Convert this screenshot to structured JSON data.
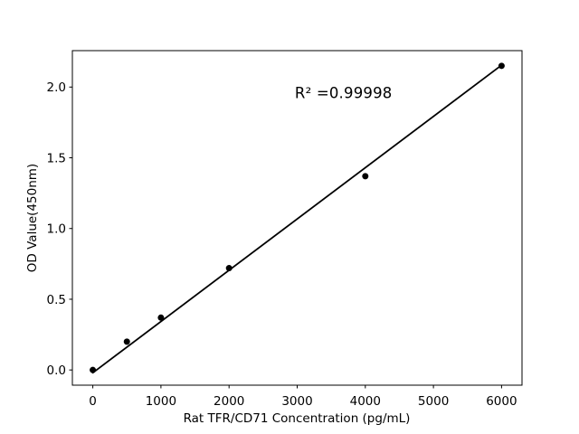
{
  "chart_data": {
    "type": "scatter",
    "xlabel": "Rat TFR/CD71 Concentration (pg/mL)",
    "ylabel": "OD Value(450nm)",
    "annotation": {
      "text": "R² =0.99998",
      "x": 3680,
      "y": 1.96
    },
    "x": [
      0,
      500,
      1000,
      2000,
      4000,
      6000
    ],
    "y": [
      0.0,
      0.2,
      0.37,
      0.72,
      1.37,
      2.15
    ],
    "fit_line": {
      "x": [
        0,
        6000
      ],
      "y": [
        -0.02,
        2.155
      ]
    },
    "x_tick_values": [
      0,
      1000,
      2000,
      3000,
      4000,
      5000,
      6000
    ],
    "x_tick_labels": [
      "0",
      "1000",
      "2000",
      "3000",
      "4000",
      "5000",
      "6000"
    ],
    "y_tick_values": [
      0.0,
      0.5,
      1.0,
      1.5,
      2.0
    ],
    "y_tick_labels": [
      "0.0",
      "0.5",
      "1.0",
      "1.5",
      "2.0"
    ],
    "xlim": [
      -300,
      6300
    ],
    "ylim": [
      -0.1075,
      2.2575
    ],
    "grid": false,
    "legend": false,
    "colors": {
      "marker": "#000000",
      "line": "#000000",
      "axes": "#000000",
      "text": "#000000",
      "background": "#ffffff"
    }
  }
}
